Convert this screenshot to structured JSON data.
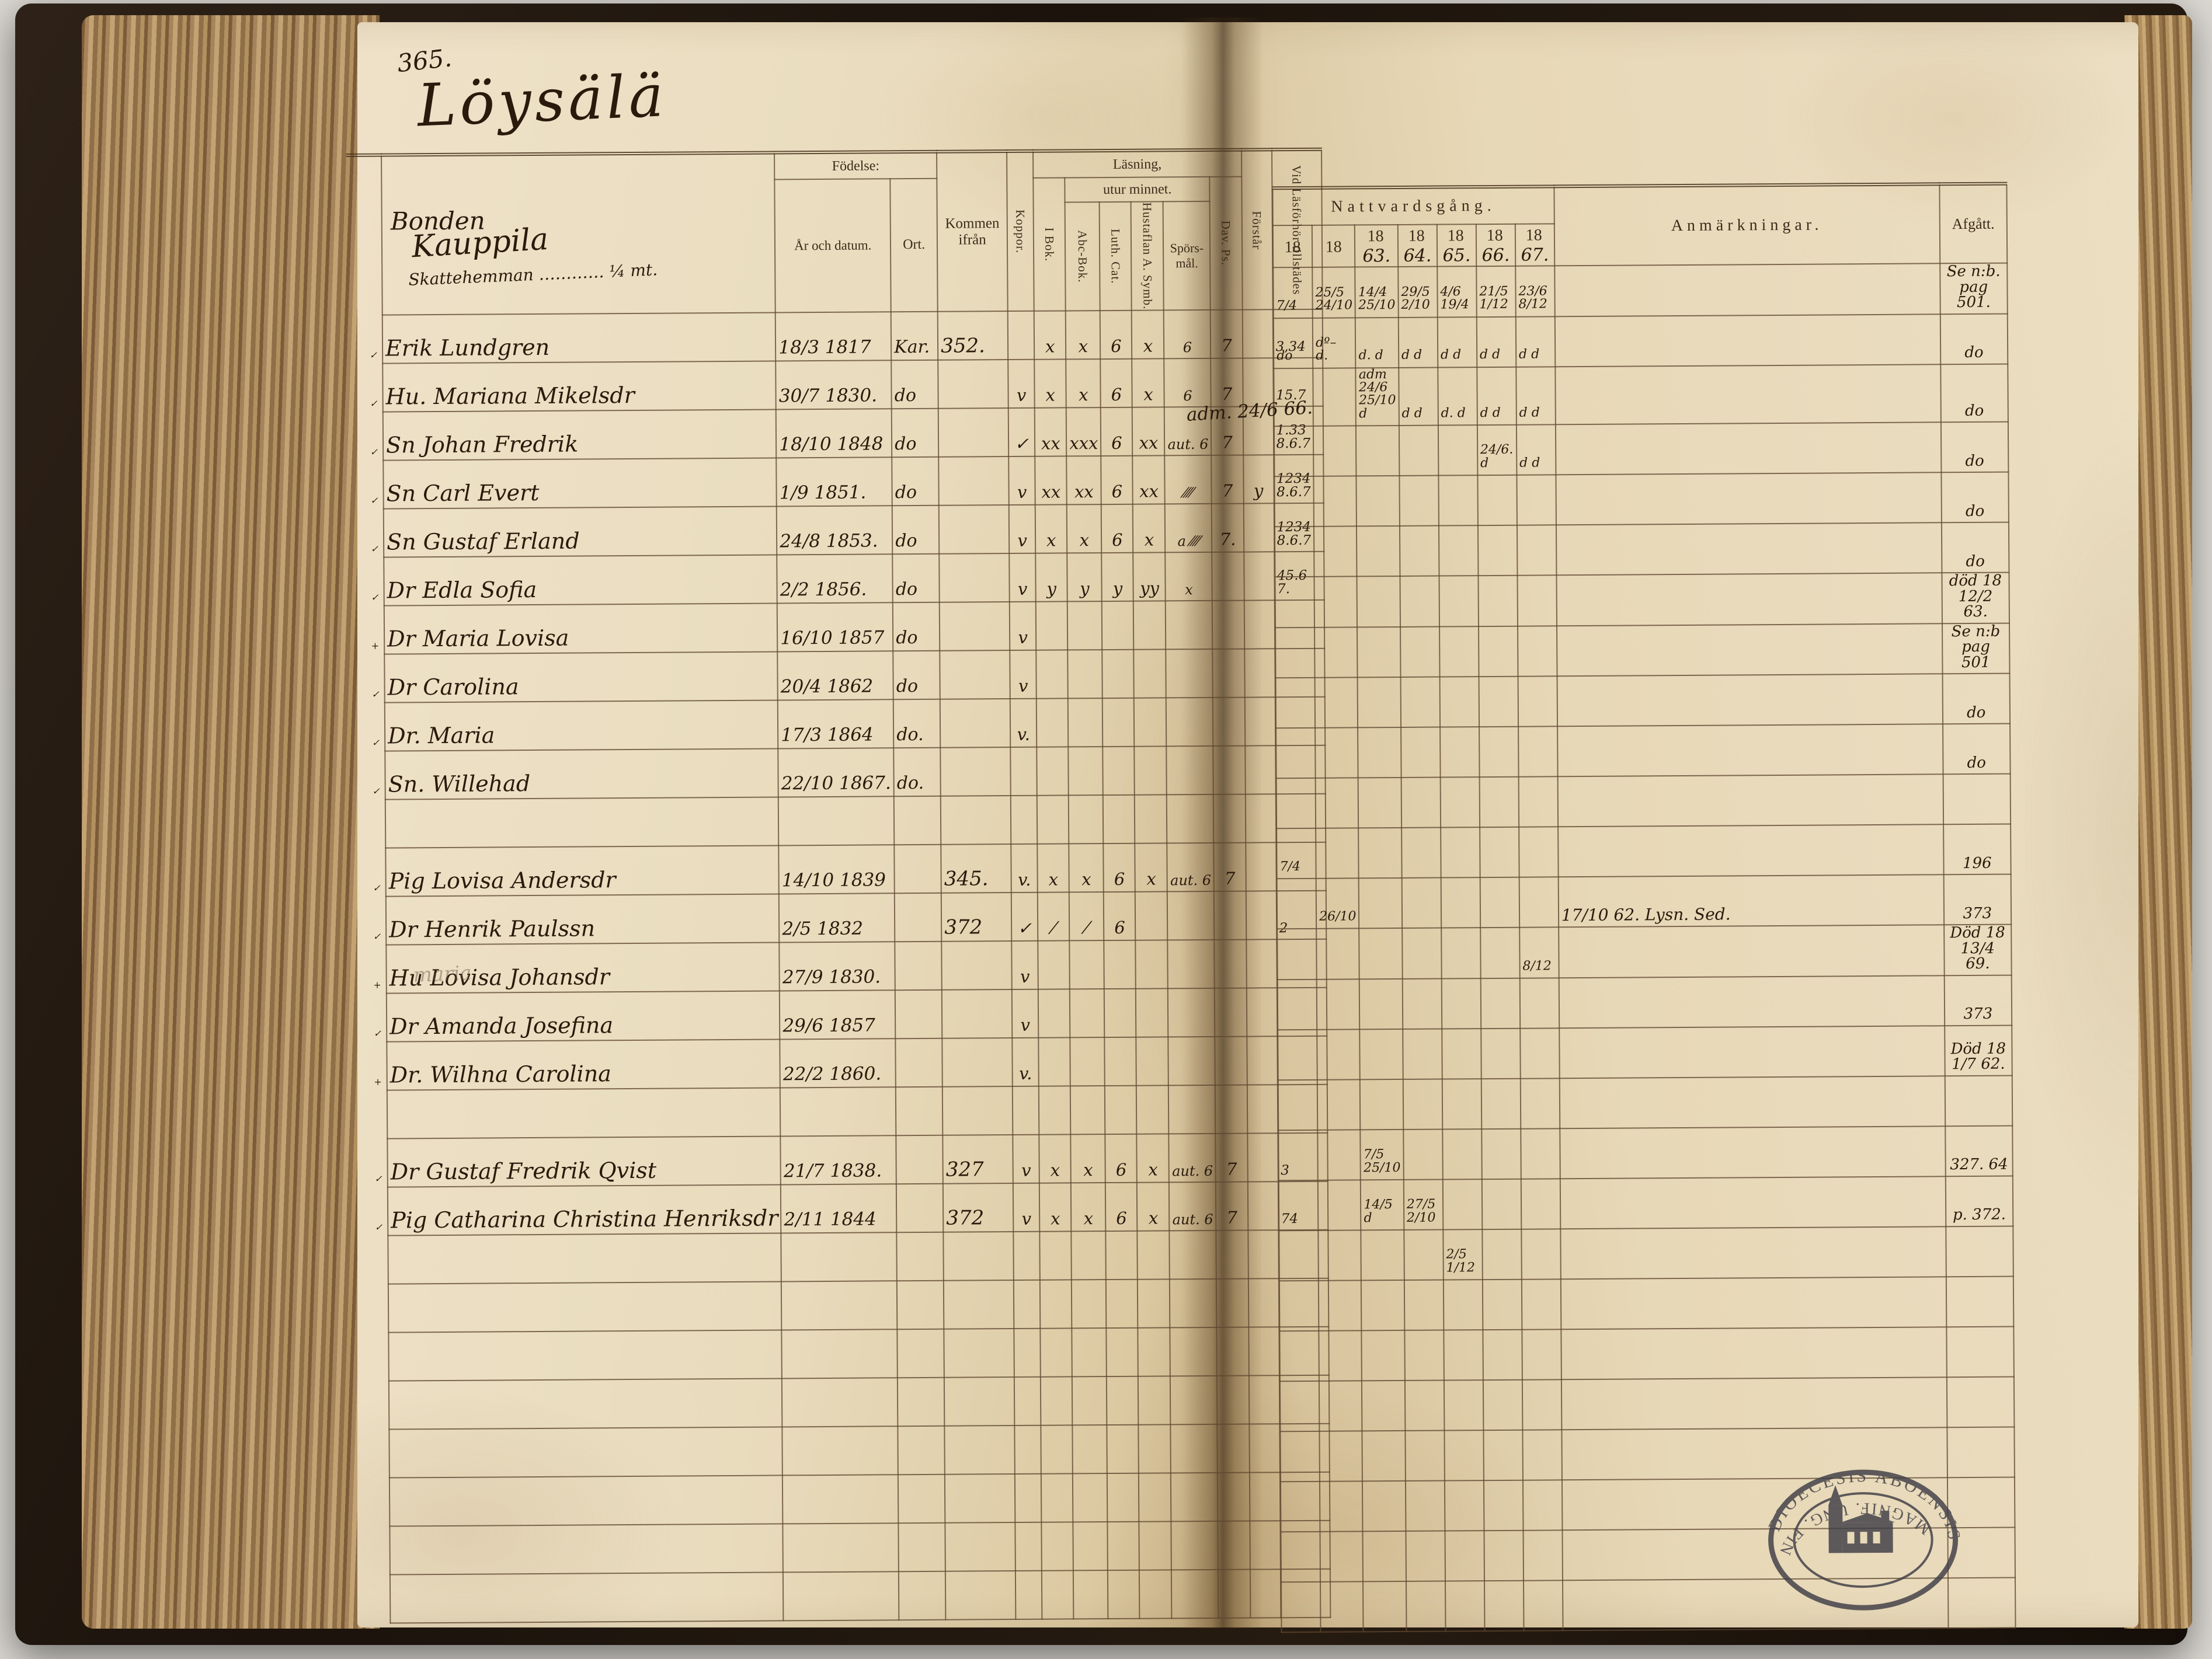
{
  "book": {
    "page_number": "365.",
    "village_title": "Löysälä",
    "holding": {
      "farm_name": "Kauppila",
      "tenure": "Skattehemman ………… ¼ mt.",
      "head_label": "Bonden"
    },
    "stamp": {
      "icon": "church-stamp",
      "top_text": "DIOECESIS ABOENSIS,",
      "bottom_text": "MAGNIF. UNG. FINL."
    }
  },
  "left_table": {
    "headers": {
      "fodelse": "Födelse:",
      "ar_och_datum": "År och datum.",
      "ort": "Ort.",
      "kommen_ifran": "Kommen ifrån",
      "koppor": "Koppor.",
      "lasning": "Läsning,",
      "utur_minnet": "utur minnet.",
      "i_bok": "I Bok.",
      "abc_bok": "Abc-Bok.",
      "luth_cat": "Luth. Cat.",
      "hustaflan": "Hustaflan A. Symb.",
      "sporsmal": "Spörs-mål.",
      "dav_ps": "Dav. Ps.",
      "forstar": "Förstår",
      "vid_lasforhor": "Vid Läsförhör tillstädes"
    }
  },
  "right_table": {
    "title": "Nattvardsgång.",
    "years": [
      {
        "printed": "18",
        "hand": ""
      },
      {
        "printed": "18",
        "hand": ""
      },
      {
        "printed": "18",
        "hand": "63."
      },
      {
        "printed": "18",
        "hand": "64."
      },
      {
        "printed": "18",
        "hand": "65."
      },
      {
        "printed": "18",
        "hand": "66."
      },
      {
        "printed": "18",
        "hand": "67."
      }
    ],
    "anmarkningar": "Anmärkningar.",
    "afgatt": "Afgått."
  },
  "annotations": {
    "adm_note": "adm. 24/6 66.",
    "pencil_note": "maria"
  },
  "colors": {
    "page": "#e9dcbd",
    "ink": "#2a1a0c",
    "print": "#3c2c1a",
    "rule_line": "#5d4730",
    "leather": "#1b130c"
  },
  "rows": [
    {
      "mark": "✓",
      "name": "Erik Lundgren",
      "born": "18/3 1817",
      "ort": "Kar.",
      "from": "352.",
      "koppor": "",
      "ibok": "x",
      "abc": "x",
      "luth": "6",
      "hus": "x",
      "spors": "6",
      "davps": "7",
      "forstar": "",
      "vid": "3,34",
      "natt": [
        "7/4",
        "25/5 24/10",
        "14/4 25/10",
        "29/5 2/10",
        "4/6 19/4",
        "21/5 1/12",
        "23/6 8/12"
      ],
      "anm": "",
      "afg": "Se n:b. pag 501."
    },
    {
      "mark": "✓",
      "name": "Hu. Mariana Mikelsdr",
      "born": "30/7 1830.",
      "ort": "do",
      "from": "",
      "koppor": "v",
      "ibok": "x",
      "abc": "x",
      "luth": "6",
      "hus": "x",
      "spors": "6",
      "davps": "7",
      "forstar": "",
      "vid": "15.7",
      "natt": [
        "do",
        "dº– d.",
        "d. d",
        "d d",
        "d d",
        "d d",
        "d d"
      ],
      "anm": "",
      "afg": "do"
    },
    {
      "mark": "✓",
      "name": "Sn Johan Fredrik",
      "born": "18/10 1848",
      "ort": "do",
      "from": "",
      "koppor": "✓",
      "ibok": "xx",
      "abc": "xxx",
      "luth": "6",
      "hus": "xx",
      "spors": "aut. 6",
      "davps": "7",
      "forstar": "",
      "vid": "1.33 8.6.7",
      "natt": [
        "",
        "",
        "adm 24/6 25/10 d",
        "d d",
        "d. d",
        "d d",
        "d d"
      ],
      "anm": "",
      "afg": "do"
    },
    {
      "mark": "✓",
      "name": "Sn Carl Evert",
      "born": "1/9 1851.",
      "ort": "do",
      "from": "",
      "koppor": "v",
      "ibok": "xx",
      "abc": "xx",
      "luth": "6",
      "hus": "xx",
      "spors": "⁄⁄⁄⁄",
      "davps": "7",
      "forstar": "y",
      "vid": "1234 8.6.7",
      "natt": [
        "",
        "",
        "",
        "",
        "",
        "24/6. d",
        "d d"
      ],
      "anm": "",
      "afg": "do"
    },
    {
      "mark": "✓",
      "name": "Sn Gustaf Erland",
      "born": "24/8 1853.",
      "ort": "do",
      "from": "",
      "koppor": "v",
      "ibok": "x",
      "abc": "x",
      "luth": "6",
      "hus": "x",
      "spors": "a ⁄⁄⁄⁄",
      "davps": "7.",
      "forstar": "",
      "vid": "1234 8.6.7",
      "natt": [
        "",
        "",
        "",
        "",
        "",
        "",
        ""
      ],
      "anm": "",
      "afg": "do"
    },
    {
      "mark": "✓",
      "name": "Dr Edla Sofia",
      "born": "2/2 1856.",
      "ort": "do",
      "from": "",
      "koppor": "v",
      "ibok": "y",
      "abc": "y",
      "luth": "y",
      "hus": "yy",
      "spors": "x",
      "davps": "",
      "forstar": "",
      "vid": "45.6 7.",
      "natt": [
        "",
        "",
        "",
        "",
        "",
        "",
        ""
      ],
      "anm": "",
      "afg": "do"
    },
    {
      "mark": "+",
      "name": "Dr Maria Lovisa",
      "born": "16/10 1857",
      "ort": "do",
      "from": "",
      "koppor": "v",
      "ibok": "",
      "abc": "",
      "luth": "",
      "hus": "",
      "spors": "",
      "davps": "",
      "forstar": "",
      "vid": "",
      "natt": [
        "",
        "",
        "",
        "",
        "",
        "",
        ""
      ],
      "anm": "",
      "afg": "död 18 12/2 63."
    },
    {
      "mark": "✓",
      "name": "Dr Carolina",
      "born": "20/4 1862",
      "ort": "do",
      "from": "",
      "koppor": "v",
      "ibok": "",
      "abc": "",
      "luth": "",
      "hus": "",
      "spors": "",
      "davps": "",
      "forstar": "",
      "vid": "",
      "natt": [
        "",
        "",
        "",
        "",
        "",
        "",
        ""
      ],
      "anm": "",
      "afg": "Se n:b pag 501"
    },
    {
      "mark": "✓",
      "name": "Dr. Maria",
      "born": "17/3 1864",
      "ort": "do.",
      "from": "",
      "koppor": "v.",
      "ibok": "",
      "abc": "",
      "luth": "",
      "hus": "",
      "spors": "",
      "davps": "",
      "forstar": "",
      "vid": "",
      "natt": [
        "",
        "",
        "",
        "",
        "",
        "",
        ""
      ],
      "anm": "",
      "afg": "do"
    },
    {
      "mark": "✓",
      "name": "Sn. Willehad",
      "born": "22/10 1867.",
      "ort": "do.",
      "from": "",
      "koppor": "",
      "ibok": "",
      "abc": "",
      "luth": "",
      "hus": "",
      "spors": "",
      "davps": "",
      "forstar": "",
      "vid": "",
      "natt": [
        "",
        "",
        "",
        "",
        "",
        "",
        ""
      ],
      "anm": "",
      "afg": "do"
    },
    {},
    {
      "mark": "✓",
      "name": "Pig Lovisa Andersdr",
      "born": "14/10 1839",
      "ort": "",
      "from": "345.",
      "koppor": "v.",
      "ibok": "x",
      "abc": "x",
      "luth": "6",
      "hus": "x",
      "spors": "aut. 6",
      "davps": "7",
      "forstar": "",
      "vid": "",
      "natt": [
        "7/4",
        "",
        "",
        "",
        "",
        "",
        ""
      ],
      "anm": "",
      "afg": "196"
    },
    {
      "mark": "✓",
      "name": "Dr Henrik Paulssn",
      "born": "2/5 1832",
      "ort": "",
      "from": "372",
      "koppor": "✓",
      "ibok": "⁄",
      "abc": "⁄",
      "luth": "6",
      "hus": "",
      "spors": "",
      "davps": "",
      "forstar": "",
      "vid": "2",
      "natt": [
        "",
        "26/10",
        "",
        "",
        "",
        "",
        ""
      ],
      "anm": "17/10 62. Lysn. Sed.",
      "afg": "373"
    },
    {
      "mark": "+",
      "name": "Hu Lovisa Johansdr",
      "born": "27/9 1830.",
      "ort": "",
      "from": "",
      "koppor": "v",
      "ibok": "",
      "abc": "",
      "luth": "",
      "hus": "",
      "spors": "",
      "davps": "",
      "forstar": "",
      "vid": "",
      "natt": [
        "",
        "",
        "",
        "",
        "",
        "",
        "8/12"
      ],
      "anm": "",
      "afg": "Död 18 13/4 69."
    },
    {
      "mark": "✓",
      "name": "Dr Amanda Josefina",
      "born": "29/6 1857",
      "ort": "",
      "from": "",
      "koppor": "v",
      "ibok": "",
      "abc": "",
      "luth": "",
      "hus": "",
      "spors": "",
      "davps": "",
      "forstar": "",
      "vid": "",
      "natt": [
        "",
        "",
        "",
        "",
        "",
        "",
        ""
      ],
      "anm": "",
      "afg": "373"
    },
    {
      "mark": "+",
      "name": "Dr. Wilhna Carolina",
      "born": "22/2 1860.",
      "ort": "",
      "from": "",
      "koppor": "v.",
      "ibok": "",
      "abc": "",
      "luth": "",
      "hus": "",
      "spors": "",
      "davps": "",
      "forstar": "",
      "vid": "",
      "natt": [
        "",
        "",
        "",
        "",
        "",
        "",
        ""
      ],
      "anm": "",
      "afg": "Död 18 1/7 62."
    },
    {},
    {
      "mark": "✓",
      "name": "Dr Gustaf Fredrik Qvist",
      "born": "21/7 1838.",
      "ort": "",
      "from": "327",
      "koppor": "v",
      "ibok": "x",
      "abc": "x",
      "luth": "6",
      "hus": "x",
      "spors": "aut. 6",
      "davps": "7",
      "forstar": "",
      "vid": "3",
      "natt": [
        "",
        "",
        "7/5 25/10",
        "",
        "",
        "",
        ""
      ],
      "anm": "",
      "afg": "327. 64"
    },
    {
      "mark": "✓",
      "name": "Pig Catharina Christina Henriksdr",
      "born": "2/11 1844",
      "ort": "",
      "from": "372",
      "koppor": "v",
      "ibok": "x",
      "abc": "x",
      "luth": "6",
      "hus": "x",
      "spors": "aut. 6",
      "davps": "7",
      "forstar": "",
      "vid": "74",
      "natt": [
        "",
        "",
        "14/5 d",
        "27/5 2/10",
        "",
        "",
        ""
      ],
      "anm": "",
      "afg": "p. 372."
    },
    {
      "natt": [
        "",
        "",
        "",
        "",
        "2/5 1/12",
        "",
        ""
      ]
    },
    {},
    {},
    {},
    {},
    {},
    {},
    {}
  ]
}
